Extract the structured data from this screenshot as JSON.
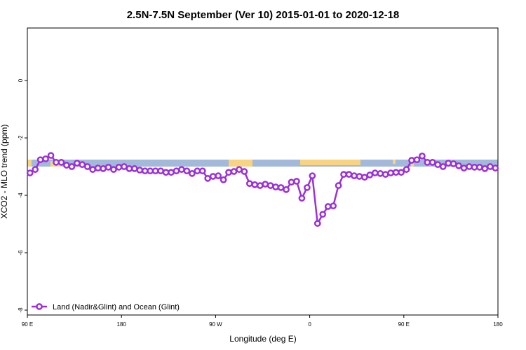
{
  "chart_data": {
    "type": "line",
    "title": "2.5N-7.5N September (Ver 10)   2015-01-01 to 2020-12-18",
    "x_label": "Longitude (deg E)",
    "y_label": "XCO2 - MLO trend (ppm)",
    "xlim": [
      90,
      540
    ],
    "ylim": [
      -8.17,
      1.83
    ],
    "xticks": [
      {
        "value": 90,
        "label": "90 E"
      },
      180,
      {
        "value": 270,
        "label": "90 W"
      },
      {
        "value": 360,
        "label": "0"
      },
      {
        "value": 450,
        "label": "90 E"
      },
      {
        "value": 540,
        "label": "180"
      }
    ],
    "yticks": [
      -8,
      -6,
      -4,
      -2,
      0
    ],
    "legend": "bottom-left",
    "x": [
      92.5,
      97.5,
      102.5,
      107.5,
      112.5,
      117.5,
      122.5,
      127.5,
      132.5,
      137.5,
      142.5,
      147.5,
      152.5,
      157.5,
      162.5,
      167.5,
      172.5,
      177.5,
      182.5,
      187.5,
      192.5,
      197.5,
      202.5,
      207.5,
      212.5,
      217.5,
      222.5,
      227.5,
      232.5,
      237.5,
      242.5,
      247.5,
      252.5,
      257.5,
      262.5,
      267.5,
      272.5,
      277.5,
      282.5,
      287.5,
      292.5,
      297.5,
      302.5,
      307.5,
      312.5,
      317.5,
      322.5,
      327.5,
      332.5,
      337.5,
      342.5,
      347.5,
      352.5,
      357.5,
      362.5,
      367.5,
      372.5,
      377.5,
      382.5,
      387.5,
      392.5,
      397.5,
      402.5,
      407.5,
      412.5,
      417.5,
      422.5,
      427.5,
      432.5,
      437.5,
      442.5,
      447.5,
      452.5,
      457.5,
      462.5,
      467.5,
      472.5,
      477.5,
      482.5,
      487.5,
      492.5,
      497.5,
      502.5,
      507.5,
      512.5,
      517.5,
      522.5,
      527.5,
      532.5,
      537.5
    ],
    "series": [
      {
        "name": "Land (Nadir&Glint) and Ocean (Glint)",
        "color": "#9b30d9",
        "values": [
          -3.22,
          -3.1,
          -2.76,
          -2.73,
          -2.61,
          -2.85,
          -2.85,
          -2.95,
          -3.0,
          -2.88,
          -2.93,
          -3.0,
          -3.1,
          -3.05,
          -3.07,
          -3.02,
          -3.1,
          -3.02,
          -3.0,
          -3.07,
          -3.07,
          -3.12,
          -3.15,
          -3.15,
          -3.15,
          -3.15,
          -3.2,
          -3.2,
          -3.15,
          -3.1,
          -3.15,
          -3.24,
          -3.15,
          -3.15,
          -3.41,
          -3.34,
          -3.32,
          -3.46,
          -3.2,
          -3.17,
          -3.1,
          -3.17,
          -3.59,
          -3.63,
          -3.66,
          -3.61,
          -3.66,
          -3.71,
          -3.73,
          -3.8,
          -3.54,
          -3.51,
          -4.1,
          -3.73,
          -3.32,
          -4.98,
          -4.66,
          -4.39,
          -4.37,
          -3.66,
          -3.27,
          -3.27,
          -3.32,
          -3.34,
          -3.37,
          -3.29,
          -3.22,
          -3.24,
          -3.27,
          -3.22,
          -3.2,
          -3.2,
          -3.1,
          -2.78,
          -2.76,
          -2.63,
          -2.85,
          -2.85,
          -2.93,
          -3.0,
          -2.88,
          -2.9,
          -2.97,
          -3.05,
          -3.0,
          -3.02,
          -3.02,
          -3.07,
          -3.0,
          -3.05
        ]
      }
    ]
  }
}
